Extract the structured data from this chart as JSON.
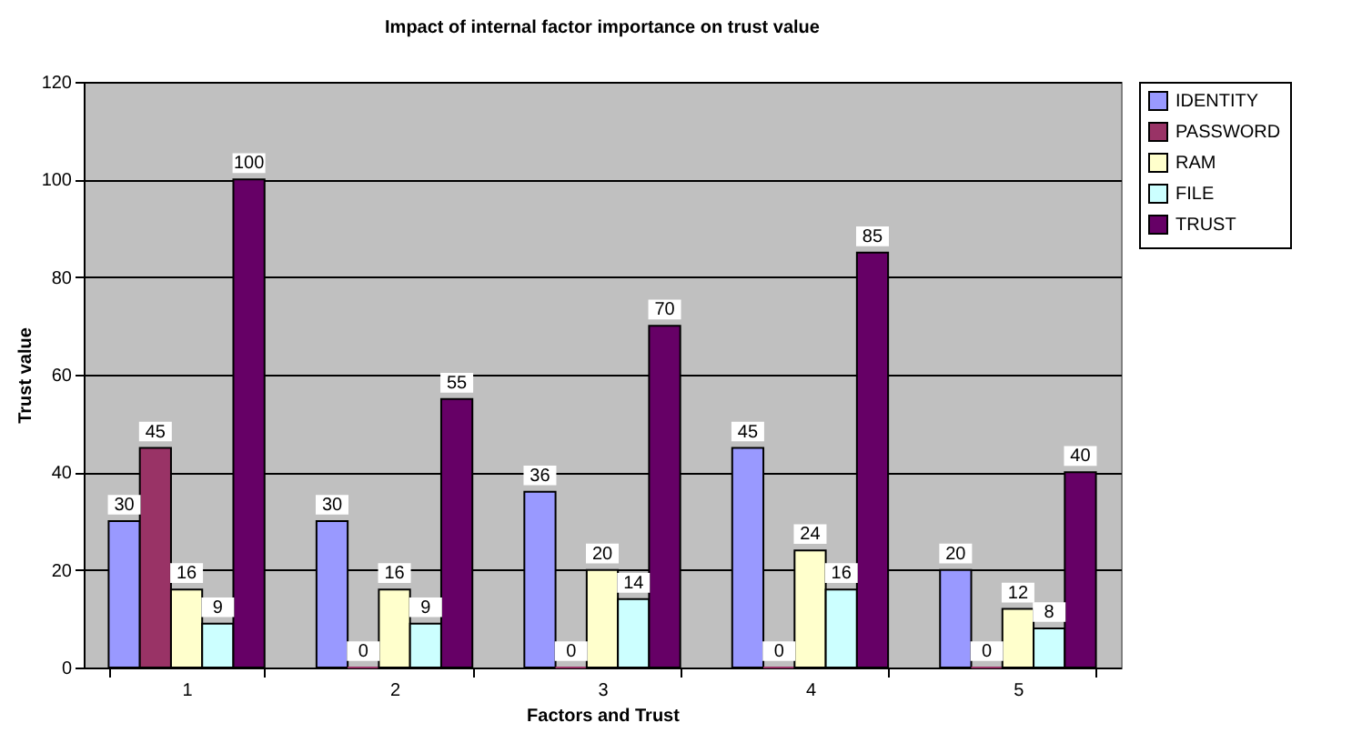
{
  "chart_data": {
    "type": "bar",
    "title": "Impact of internal factor importance on trust value",
    "xlabel": "Factors and Trust",
    "ylabel": "Trust value",
    "categories": [
      "1",
      "2",
      "3",
      "4",
      "5"
    ],
    "series": [
      {
        "name": "IDENTITY",
        "color": "#9999ff",
        "values": [
          30,
          30,
          36,
          45,
          20
        ]
      },
      {
        "name": "PASSWORD",
        "color": "#993366",
        "values": [
          45,
          0,
          0,
          0,
          0
        ]
      },
      {
        "name": "RAM",
        "color": "#ffffcc",
        "values": [
          16,
          16,
          20,
          24,
          12
        ]
      },
      {
        "name": "FILE",
        "color": "#ccffff",
        "values": [
          9,
          9,
          14,
          16,
          8
        ]
      },
      {
        "name": "TRUST",
        "color": "#660066",
        "values": [
          100,
          55,
          70,
          85,
          40
        ]
      }
    ],
    "ylim": [
      0,
      120
    ],
    "yticks": [
      0,
      20,
      40,
      60,
      80,
      100,
      120
    ],
    "grid": "y",
    "legend": "right",
    "data_labels": true
  }
}
